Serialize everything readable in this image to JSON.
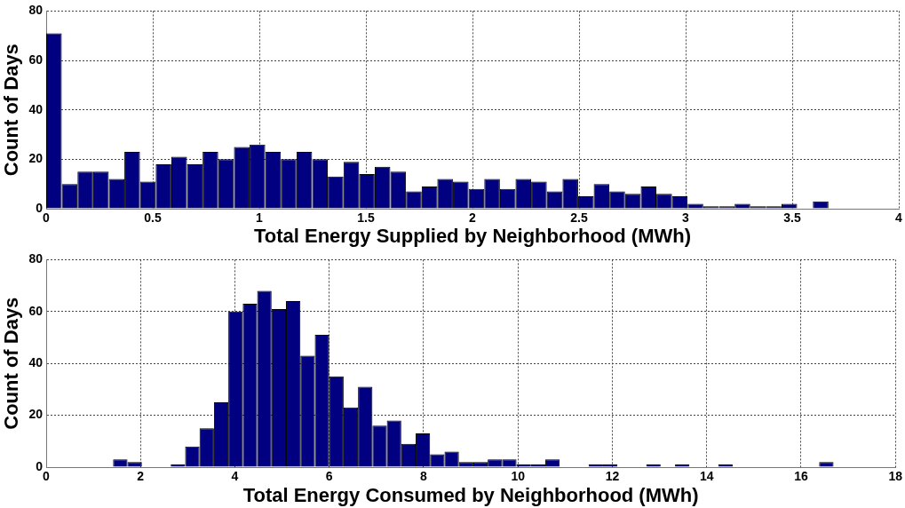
{
  "chart_data": [
    {
      "type": "histogram",
      "xlabel": "Total Energy Supplied by Neighborhood (MWh)",
      "ylabel": "Count of Days",
      "color": "#000080",
      "bins": [
        0,
        0.073,
        0.147,
        0.22,
        0.294,
        0.367,
        0.44,
        0.514,
        0.587,
        0.661,
        0.734,
        0.807,
        0.881,
        0.954,
        1.028,
        1.101,
        1.174,
        1.248,
        1.321,
        1.395,
        1.468,
        1.541,
        1.615,
        1.688,
        1.762,
        1.835,
        1.908,
        1.982,
        2.055,
        2.129,
        2.202,
        2.275,
        2.349,
        2.422,
        2.496,
        2.569,
        2.642,
        2.716,
        2.789,
        2.863,
        2.936,
        3.009,
        3.083,
        3.156,
        3.23,
        3.303,
        3.376,
        3.45,
        3.523,
        3.597,
        3.67
      ],
      "values": [
        71,
        10,
        15,
        15,
        12,
        23,
        11,
        18,
        21,
        18,
        23,
        20,
        25,
        26,
        23,
        20,
        23,
        20,
        13,
        19,
        14,
        17,
        15,
        7,
        9,
        12,
        11,
        8,
        12,
        8,
        12,
        11,
        7,
        12,
        5,
        10,
        7,
        6,
        9,
        6,
        5,
        2,
        1,
        1,
        2,
        1,
        1,
        2,
        0,
        3
      ],
      "xlim": [
        0,
        4
      ],
      "xticks": [
        0,
        0.5,
        1,
        1.5,
        2,
        2.5,
        3,
        3.5,
        4
      ],
      "ylim": [
        0,
        80
      ],
      "yticks": [
        0,
        20,
        40,
        60,
        80
      ],
      "grid": true
    },
    {
      "type": "histogram",
      "xlabel": "Total Energy Consumed by Neighborhood (MWh)",
      "ylabel": "Count of Days",
      "color": "#000080",
      "bins": [
        1.418,
        1.723,
        2.029,
        2.334,
        2.64,
        2.945,
        3.25,
        3.556,
        3.861,
        4.167,
        4.472,
        4.777,
        5.083,
        5.388,
        5.694,
        5.999,
        6.304,
        6.61,
        6.915,
        7.221,
        7.526,
        7.831,
        8.137,
        8.442,
        8.748,
        9.053,
        9.358,
        9.664,
        9.969,
        10.275,
        10.58,
        10.885,
        11.191,
        11.496,
        11.802,
        12.107,
        12.412,
        12.718,
        13.023,
        13.329,
        13.634,
        13.939,
        14.245,
        14.55,
        14.856,
        15.161,
        15.466,
        15.772,
        16.077,
        16.383,
        16.688
      ],
      "values": [
        3,
        2,
        0,
        0,
        1,
        8,
        15,
        25,
        60,
        63,
        68,
        61,
        64,
        43,
        51,
        35,
        23,
        31,
        16,
        18,
        9,
        13,
        5,
        6,
        2,
        2,
        3,
        3,
        1,
        1,
        3,
        0,
        0,
        1,
        1,
        0,
        0,
        1,
        0,
        1,
        0,
        0,
        1,
        0,
        0,
        0,
        0,
        0,
        0,
        2
      ],
      "xlim": [
        0,
        18
      ],
      "xticks": [
        0,
        2,
        4,
        6,
        8,
        10,
        12,
        14,
        16,
        18
      ],
      "ylim": [
        0,
        80
      ],
      "yticks": [
        0,
        20,
        40,
        60,
        80
      ],
      "grid": true
    }
  ]
}
